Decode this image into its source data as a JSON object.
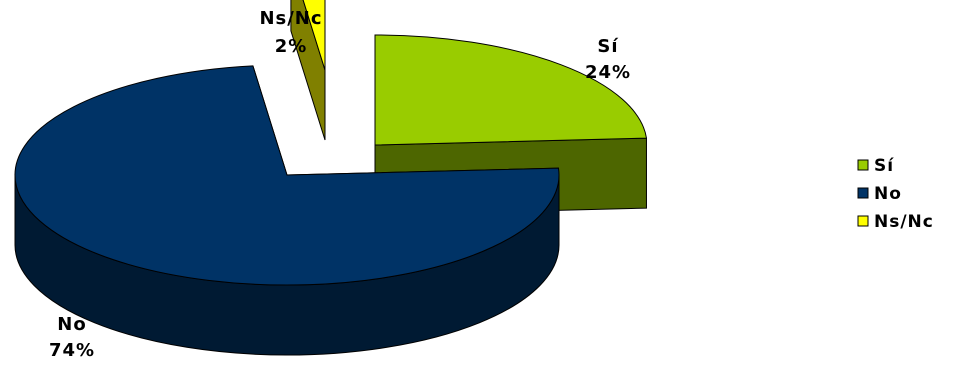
{
  "chart_data": {
    "type": "pie",
    "title": "",
    "labels": [
      "Sí",
      "No",
      "Ns/Nc"
    ],
    "values": [
      24,
      74,
      2
    ],
    "value_labels": [
      "24%",
      "74%",
      "2%"
    ],
    "colors": [
      "#99CC00",
      "#003366",
      "#FFFF00"
    ],
    "side_colors": [
      "#4D6600",
      "#001A33",
      "#808000"
    ],
    "exploded": true,
    "three_d": true,
    "legend": {
      "placement": "right",
      "entries": [
        "Sí",
        "No",
        "Ns/Nc"
      ]
    }
  }
}
